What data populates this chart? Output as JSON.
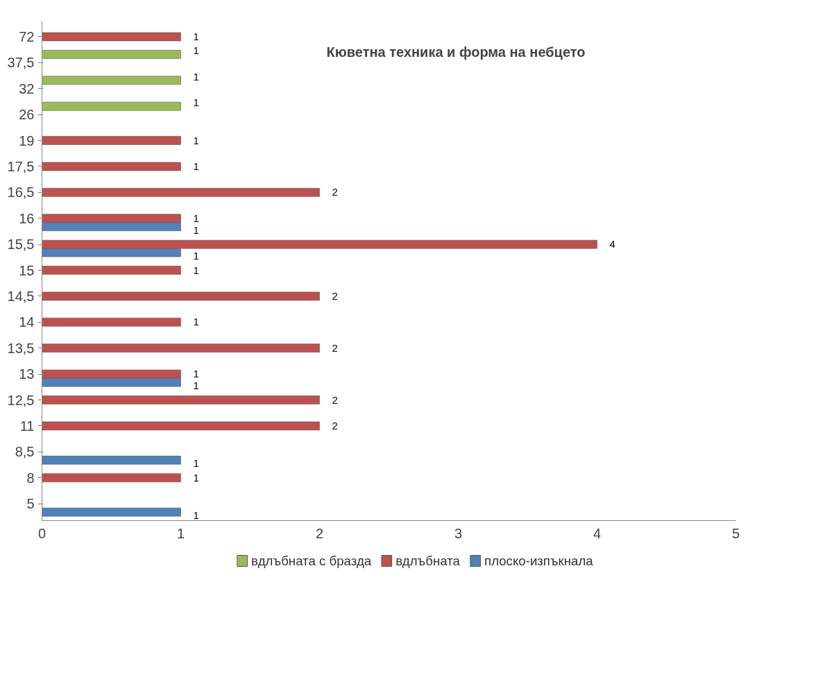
{
  "chart_data": {
    "type": "bar",
    "orientation": "horizontal",
    "title": "Кюветна  техника и форма на небцето",
    "categories": [
      "72",
      "37,5",
      "32",
      "26",
      "19",
      "17,5",
      "16,5",
      "16",
      "15,5",
      "15",
      "14,5",
      "14",
      "13,5",
      "13",
      "12,5",
      "11",
      "8,5",
      "8",
      "5"
    ],
    "series": [
      {
        "name": "плоско-изпъкнала",
        "color": "#4f81bd",
        "values": [
          null,
          null,
          null,
          null,
          null,
          null,
          null,
          1,
          1,
          null,
          null,
          null,
          null,
          1,
          null,
          null,
          1,
          null,
          1
        ]
      },
      {
        "name": "вдлъбната",
        "color": "#c0504d",
        "values": [
          1,
          null,
          null,
          null,
          1,
          1,
          2,
          1,
          4,
          1,
          2,
          1,
          2,
          1,
          2,
          2,
          null,
          1,
          null
        ]
      },
      {
        "name": "вдлъбната с бразда",
        "color": "#9bbb59",
        "values": [
          null,
          1,
          1,
          1,
          null,
          null,
          null,
          null,
          null,
          null,
          null,
          null,
          null,
          null,
          null,
          null,
          null,
          null,
          null
        ]
      }
    ],
    "xlim": [
      0,
      5
    ],
    "xticks": [
      0,
      1,
      2,
      3,
      4,
      5
    ],
    "grid": false,
    "legend": "bottom",
    "data_labels": true
  }
}
